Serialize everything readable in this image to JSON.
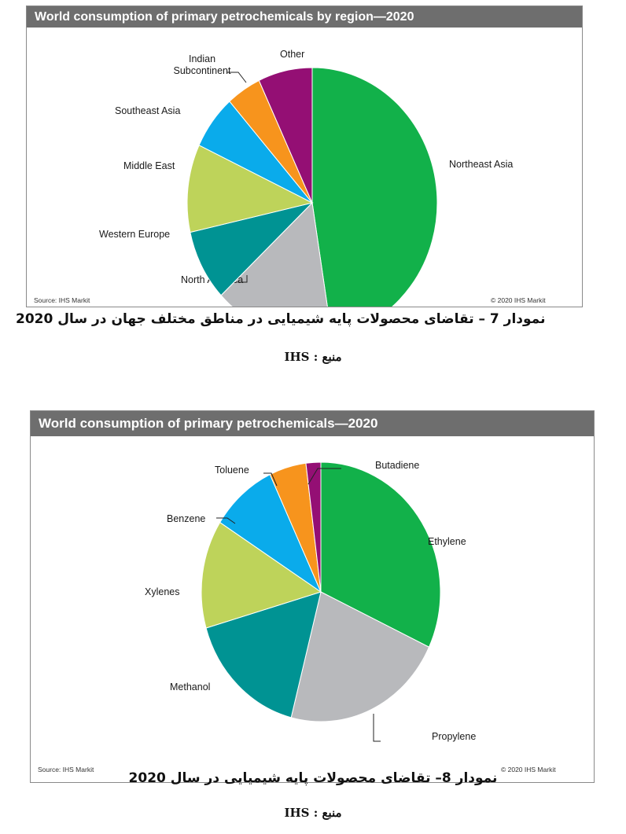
{
  "charts": [
    {
      "header": "World consumption  of primary petrochemicals by region—2020",
      "source": "Source:  IHS Markit",
      "copyright": "© 2020  IHS Markit"
    },
    {
      "header": "World consumption  of primary petrochemicals—2020",
      "source": "Source:  IHS Markit",
      "copyright": "© 2020  IHS Markit"
    }
  ],
  "captions": [
    {
      "text": "نمودار 7 – تقاضای محصولات پایه شیمیایی در مناطق مختلف جهان در سال 2020",
      "source": "منبع : IHS"
    },
    {
      "text": "نمودار 8– تقاضای محصولات پایه شیمیایی در سال 2020",
      "source": "منبع : IHS"
    }
  ],
  "chart_data": [
    {
      "type": "pie",
      "title": "World consumption  of primary petrochemicals by region—2020",
      "slices": [
        {
          "label": "Northeast Asia",
          "value": 47.5,
          "color": "#12b14a"
        },
        {
          "label": "North America",
          "value": 15.5,
          "color": "#b8b9bc"
        },
        {
          "label": "Western Europe",
          "value": 8.5,
          "color": "#009393"
        },
        {
          "label": "Middle East",
          "value": 10.5,
          "color": "#bed35a"
        },
        {
          "label": "Southeast Asia",
          "value": 6.5,
          "color": "#0aabeb"
        },
        {
          "label": "Indian\nSubcontinent",
          "value": 4.5,
          "color": "#f7941d"
        },
        {
          "label": "Other",
          "value": 7.0,
          "color": "#940f74"
        }
      ]
    },
    {
      "type": "pie",
      "title": "World consumption  of primary petrochemicals—2020",
      "slices": [
        {
          "label": "Ethylene",
          "value": 32.0,
          "color": "#12b14a"
        },
        {
          "label": "Propylene",
          "value": 22.0,
          "color": "#b8b9bc"
        },
        {
          "label": "Methanol",
          "value": 16.5,
          "color": "#009393"
        },
        {
          "label": "Xylenes",
          "value": 13.5,
          "color": "#bed35a"
        },
        {
          "label": "Benzene",
          "value": 9.0,
          "color": "#0aabeb"
        },
        {
          "label": "Toluene",
          "value": 5.0,
          "color": "#f7941d"
        },
        {
          "label": "Butadiene",
          "value": 2.0,
          "color": "#940f74"
        }
      ]
    }
  ]
}
